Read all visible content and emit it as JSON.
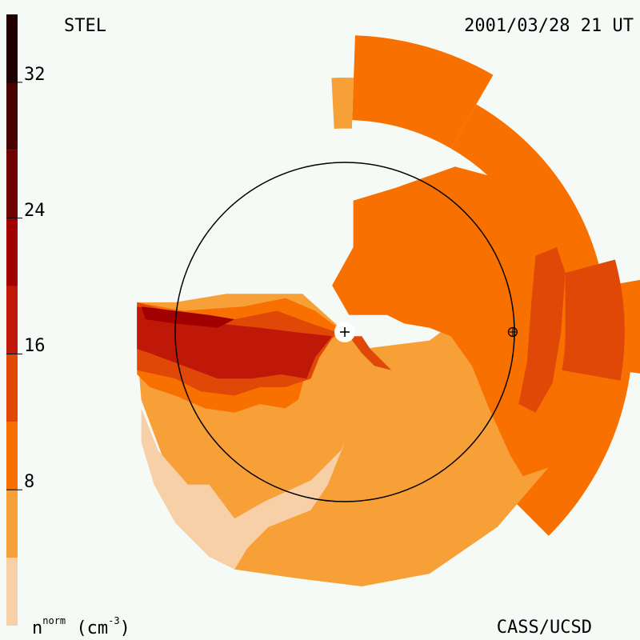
{
  "header": {
    "station": "STEL",
    "timestamp": "2001/03/28 21 UT"
  },
  "footer": {
    "quantity": "n",
    "quantity_superscript": "norm",
    "units": "(cm",
    "units_exp": "-3",
    "units_close": ")",
    "credit": "CASS/UCSD"
  },
  "colors": {
    "background": "#f6faf6",
    "ring": "#000000"
  },
  "chart_data": {
    "type": "heatmap",
    "colorbar": {
      "orientation": "vertical",
      "placement": "left",
      "range": [
        0,
        36
      ],
      "ticks": [
        8,
        16,
        24,
        32
      ],
      "tick_labels": [
        "8",
        "16",
        "24",
        "32"
      ],
      "levels": [
        {
          "from": 0,
          "to": 4,
          "color": "#f8d0a8"
        },
        {
          "from": 4,
          "to": 8,
          "color": "#f8a038"
        },
        {
          "from": 8,
          "to": 12,
          "color": "#f87000"
        },
        {
          "from": 12,
          "to": 16,
          "color": "#e04808"
        },
        {
          "from": 16,
          "to": 20,
          "color": "#c01808"
        },
        {
          "from": 20,
          "to": 24,
          "color": "#a00000"
        },
        {
          "from": 24,
          "to": 28,
          "color": "#700000"
        },
        {
          "from": 28,
          "to": 32,
          "color": "#480000"
        },
        {
          "from": 32,
          "to": 36,
          "color": "#200000"
        }
      ]
    },
    "regions": [
      {
        "level": 1,
        "points": [
          [
            -2.45,
            0.35
          ],
          [
            -2.0,
            0.35
          ],
          [
            -1.4,
            0.45
          ],
          [
            -0.5,
            0.45
          ],
          [
            0.0,
            0.0
          ],
          [
            0.2,
            -0.2
          ],
          [
            0.6,
            -0.15
          ],
          [
            1.0,
            -0.1
          ],
          [
            1.2,
            0.05
          ],
          [
            1.5,
            0.1
          ],
          [
            1.9,
            -0.5
          ],
          [
            2.4,
            -1.2
          ],
          [
            2.4,
            -1.6
          ],
          [
            1.8,
            -2.3
          ],
          [
            1.0,
            -2.85
          ],
          [
            0.2,
            -3.0
          ],
          [
            -0.6,
            -2.9
          ],
          [
            -1.3,
            -2.8
          ],
          [
            -1.75,
            -2.3
          ],
          [
            -2.1,
            -1.6
          ],
          [
            -2.4,
            -0.8
          ],
          [
            -2.45,
            -0.2
          ]
        ]
      },
      {
        "level": 0,
        "points": [
          [
            -2.4,
            -0.9
          ],
          [
            -2.2,
            -1.4
          ],
          [
            -1.85,
            -1.8
          ],
          [
            -1.6,
            -1.8
          ],
          [
            -1.3,
            -2.2
          ],
          [
            -0.95,
            -2.0
          ],
          [
            -0.4,
            -1.75
          ],
          [
            -0.05,
            -1.4
          ],
          [
            0.0,
            -1.3
          ],
          [
            -0.2,
            -1.8
          ],
          [
            -0.4,
            -2.1
          ],
          [
            -0.9,
            -2.3
          ],
          [
            -1.15,
            -2.55
          ],
          [
            -1.3,
            -2.8
          ],
          [
            -1.6,
            -2.65
          ],
          [
            -2.0,
            -2.25
          ],
          [
            -2.25,
            -1.8
          ],
          [
            -2.4,
            -1.3
          ]
        ]
      },
      {
        "level": 2,
        "points": [
          [
            0.05,
            0.2
          ],
          [
            0.5,
            0.2
          ],
          [
            0.7,
            0.1
          ],
          [
            1.0,
            0.05
          ],
          [
            1.25,
            -0.05
          ],
          [
            1.5,
            -0.4
          ],
          [
            1.7,
            -0.9
          ],
          [
            1.95,
            -1.45
          ],
          [
            2.1,
            -1.7
          ],
          [
            2.4,
            -1.6
          ],
          [
            2.5,
            -1.2
          ],
          [
            2.55,
            -0.5
          ],
          [
            2.6,
            0.1
          ],
          [
            2.6,
            0.8
          ],
          [
            2.55,
            1.35
          ],
          [
            2.05,
            1.75
          ],
          [
            1.3,
            1.95
          ],
          [
            0.6,
            1.7
          ],
          [
            0.1,
            1.55
          ],
          [
            0.1,
            1.0
          ],
          [
            -0.15,
            0.55
          ]
        ]
      },
      {
        "level": 3,
        "points": [
          [
            2.05,
            -0.85
          ],
          [
            2.15,
            -0.35
          ],
          [
            2.2,
            0.35
          ],
          [
            2.25,
            0.9
          ],
          [
            2.5,
            1.0
          ],
          [
            2.6,
            0.7
          ],
          [
            2.55,
            0.0
          ],
          [
            2.45,
            -0.6
          ],
          [
            2.25,
            -0.95
          ]
        ]
      },
      {
        "level": 2,
        "points": [
          [
            -2.45,
            0.35
          ],
          [
            -1.9,
            0.25
          ],
          [
            -1.2,
            0.3
          ],
          [
            -0.7,
            0.4
          ],
          [
            -0.35,
            0.25
          ],
          [
            -0.15,
            0.1
          ],
          [
            0.0,
            0.0
          ],
          [
            -0.3,
            -0.15
          ],
          [
            -0.45,
            -0.45
          ],
          [
            -0.55,
            -0.8
          ],
          [
            -0.7,
            -0.9
          ],
          [
            -1.0,
            -0.85
          ],
          [
            -1.3,
            -0.95
          ],
          [
            -1.65,
            -0.9
          ],
          [
            -2.0,
            -0.75
          ],
          [
            -2.3,
            -0.65
          ],
          [
            -2.45,
            -0.5
          ]
        ]
      },
      {
        "level": 3,
        "points": [
          [
            -2.45,
            0.35
          ],
          [
            -1.9,
            0.2
          ],
          [
            -1.3,
            0.15
          ],
          [
            -0.8,
            0.25
          ],
          [
            -0.4,
            0.1
          ],
          [
            -0.1,
            0.0
          ],
          [
            -0.3,
            -0.3
          ],
          [
            -0.4,
            -0.55
          ],
          [
            -0.7,
            -0.65
          ],
          [
            -1.0,
            -0.65
          ],
          [
            -1.3,
            -0.75
          ],
          [
            -1.7,
            -0.7
          ],
          [
            -2.0,
            -0.55
          ],
          [
            -2.45,
            -0.45
          ]
        ]
      },
      {
        "level": 4,
        "points": [
          [
            -2.45,
            0.3
          ],
          [
            -2.0,
            0.2
          ],
          [
            -1.5,
            0.1
          ],
          [
            -1.0,
            0.05
          ],
          [
            -0.6,
            0.0
          ],
          [
            -0.15,
            -0.05
          ],
          [
            -0.35,
            -0.3
          ],
          [
            -0.45,
            -0.55
          ],
          [
            -0.75,
            -0.5
          ],
          [
            -1.1,
            -0.55
          ],
          [
            -1.5,
            -0.55
          ],
          [
            -1.9,
            -0.4
          ],
          [
            -2.3,
            -0.25
          ],
          [
            -2.45,
            -0.2
          ]
        ]
      },
      {
        "level": 5,
        "points": [
          [
            -2.4,
            0.3
          ],
          [
            -2.0,
            0.25
          ],
          [
            -1.6,
            0.2
          ],
          [
            -1.3,
            0.15
          ],
          [
            -1.5,
            0.05
          ],
          [
            -2.0,
            0.1
          ],
          [
            -2.35,
            0.15
          ]
        ]
      },
      {
        "level": 3,
        "points": [
          [
            0.05,
            -0.05
          ],
          [
            0.2,
            -0.05
          ],
          [
            0.3,
            -0.2
          ],
          [
            0.45,
            -0.35
          ],
          [
            0.55,
            -0.45
          ],
          [
            0.35,
            -0.4
          ],
          [
            0.2,
            -0.25
          ]
        ]
      }
    ],
    "wedges": [
      {
        "level": 2,
        "inner": 2.5,
        "outer": 3.5,
        "from_deg": 60,
        "to_deg": 88
      },
      {
        "level": 2,
        "inner": 2.5,
        "outer": 3.1,
        "from_deg": 10,
        "to_deg": 60
      },
      {
        "level": 1,
        "inner": 2.4,
        "outer": 3.0,
        "from_deg": 88,
        "to_deg": 93
      },
      {
        "level": 2,
        "inner": 2.5,
        "outer": 3.7,
        "from_deg": -8,
        "to_deg": 10
      },
      {
        "level": 2,
        "inner": 2.4,
        "outer": 3.4,
        "from_deg": -45,
        "to_deg": -8
      },
      {
        "level": 3,
        "inner": 2.6,
        "outer": 3.3,
        "from_deg": -10,
        "to_deg": 15
      }
    ],
    "plot_extent": [
      -3.8,
      3.8,
      -3.8,
      3.8
    ],
    "reference_circle_radius": 2.0,
    "markers": [
      {
        "name": "sun",
        "x": 0,
        "y": 0,
        "symbol": "plus"
      },
      {
        "name": "earth",
        "x": 1.98,
        "y": 0,
        "symbol": "circle-plus"
      }
    ],
    "grid": false,
    "legend": "none"
  }
}
